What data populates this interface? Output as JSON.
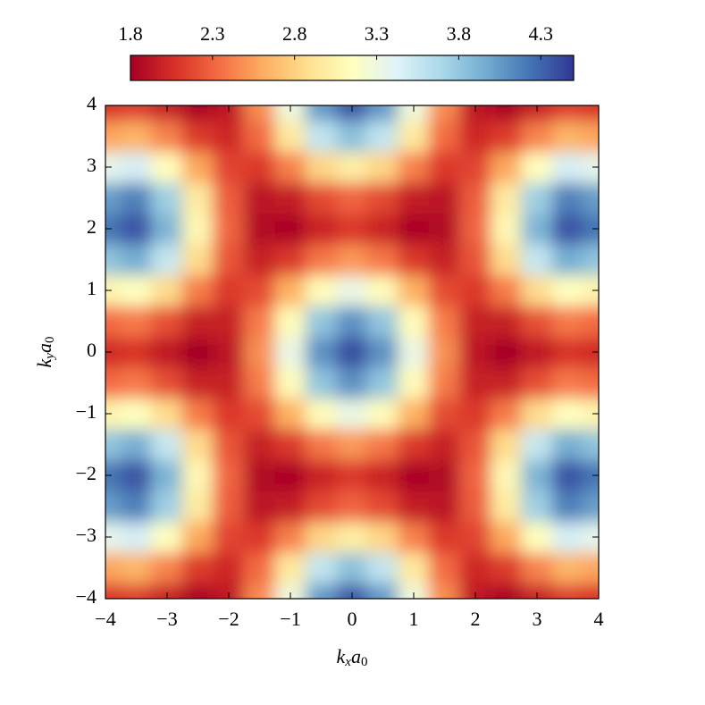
{
  "chart_data": {
    "type": "heatmap",
    "xlabel": [
      "k",
      "x",
      "a",
      "0"
    ],
    "ylabel": [
      "k",
      "y",
      "a",
      "0"
    ],
    "x": [
      -4,
      -3.5,
      -3,
      -2.5,
      -2,
      -1.5,
      -1,
      -0.5,
      0,
      0.5,
      1,
      1.5,
      2,
      2.5,
      3,
      3.5,
      4
    ],
    "y": [
      -4,
      -3.5,
      -3,
      -2.5,
      -2,
      -1.5,
      -1,
      -0.5,
      0,
      0.5,
      1,
      1.5,
      2,
      2.5,
      3,
      3.5,
      4
    ],
    "z": [
      [
        2.08,
        2.13,
        1.98,
        1.83,
        1.94,
        2.47,
        3.29,
        4.05,
        4.35,
        4.05,
        3.29,
        2.47,
        1.94,
        1.83,
        1.98,
        2.13,
        2.08
      ],
      [
        2.57,
        2.64,
        2.43,
        2.12,
        2.02,
        2.33,
        2.96,
        3.58,
        3.84,
        3.58,
        2.96,
        2.33,
        2.02,
        2.12,
        2.43,
        2.64,
        2.57
      ],
      [
        3.36,
        3.47,
        3.14,
        2.59,
        2.16,
        2.11,
        2.42,
        2.82,
        3.0,
        2.82,
        2.42,
        2.11,
        2.16,
        2.59,
        3.14,
        3.47,
        3.36
      ],
      [
        4.03,
        4.17,
        3.75,
        2.98,
        2.27,
        1.92,
        1.96,
        2.18,
        2.3,
        2.18,
        1.96,
        1.92,
        2.27,
        2.98,
        3.75,
        4.17,
        4.03
      ],
      [
        4.22,
        4.37,
        3.91,
        3.09,
        2.3,
        1.87,
        1.83,
        2.0,
        2.1,
        2.0,
        1.83,
        1.87,
        2.3,
        3.09,
        3.91,
        4.37,
        4.22
      ],
      [
        3.82,
        3.95,
        3.56,
        2.86,
        2.23,
        1.98,
        2.1,
        2.38,
        2.52,
        2.38,
        2.1,
        1.98,
        2.23,
        2.86,
        3.56,
        3.95,
        3.82
      ],
      [
        3.05,
        3.15,
        2.86,
        2.4,
        2.11,
        2.19,
        2.63,
        3.12,
        3.33,
        3.12,
        2.63,
        2.19,
        2.11,
        2.4,
        2.86,
        3.15,
        3.05
      ],
      [
        2.33,
        2.39,
        2.21,
        1.98,
        1.98,
        2.4,
        3.12,
        3.81,
        4.09,
        3.81,
        3.12,
        2.4,
        1.98,
        1.98,
        2.21,
        2.39,
        2.33
      ],
      [
        2.03,
        2.08,
        1.94,
        1.8,
        1.93,
        2.48,
        3.32,
        4.09,
        4.4,
        4.09,
        3.32,
        2.48,
        1.93,
        1.8,
        1.94,
        2.08,
        2.03
      ],
      [
        2.33,
        2.39,
        2.21,
        1.98,
        1.98,
        2.4,
        3.12,
        3.81,
        4.09,
        3.81,
        3.12,
        2.4,
        1.98,
        1.98,
        2.21,
        2.39,
        2.33
      ],
      [
        3.05,
        3.15,
        2.86,
        2.4,
        2.11,
        2.19,
        2.63,
        3.12,
        3.33,
        3.12,
        2.63,
        2.19,
        2.11,
        2.4,
        2.86,
        3.15,
        3.05
      ],
      [
        3.82,
        3.95,
        3.56,
        2.86,
        2.23,
        1.98,
        2.1,
        2.38,
        2.52,
        2.38,
        2.1,
        1.98,
        2.23,
        2.86,
        3.56,
        3.95,
        3.82
      ],
      [
        4.22,
        4.37,
        3.91,
        3.09,
        2.3,
        1.87,
        1.83,
        2.0,
        2.1,
        2.0,
        1.83,
        1.87,
        2.3,
        3.09,
        3.91,
        4.37,
        4.22
      ],
      [
        4.03,
        4.17,
        3.75,
        2.98,
        2.27,
        1.92,
        1.96,
        2.18,
        2.3,
        2.18,
        1.96,
        1.92,
        2.27,
        2.98,
        3.75,
        4.17,
        4.03
      ],
      [
        3.36,
        3.47,
        3.14,
        2.59,
        2.16,
        2.11,
        2.42,
        2.82,
        3.0,
        2.82,
        2.42,
        2.11,
        2.16,
        2.59,
        3.14,
        3.47,
        3.36
      ],
      [
        2.57,
        2.64,
        2.43,
        2.12,
        2.02,
        2.33,
        2.96,
        3.58,
        3.84,
        3.58,
        2.96,
        2.33,
        2.02,
        2.12,
        2.43,
        2.64,
        2.57
      ],
      [
        2.08,
        2.13,
        1.98,
        1.83,
        1.94,
        2.47,
        3.29,
        4.05,
        4.35,
        4.05,
        3.29,
        2.47,
        1.94,
        1.83,
        1.98,
        2.13,
        2.08
      ]
    ],
    "xlim": [
      -4,
      4
    ],
    "ylim": [
      -4,
      4
    ],
    "xticks": [
      {
        "value": -4,
        "label": "−4"
      },
      {
        "value": -3,
        "label": "−3"
      },
      {
        "value": -2,
        "label": "−2"
      },
      {
        "value": -1,
        "label": "−1"
      },
      0,
      1,
      2,
      3,
      4
    ],
    "yticks": [
      {
        "value": -4,
        "label": "−4"
      },
      {
        "value": -3,
        "label": "−3"
      },
      {
        "value": -2,
        "label": "−2"
      },
      {
        "value": -1,
        "label": "−1"
      },
      0,
      1,
      2,
      3,
      4
    ],
    "clim": [
      1.8,
      4.5
    ],
    "cticks": [
      1.8,
      2.3,
      2.8,
      3.3,
      3.8,
      4.3
    ],
    "colormap": [
      "#a50026",
      "#d73027",
      "#f46d43",
      "#fdae61",
      "#fee090",
      "#ffffbf",
      "#e0f3f8",
      "#abd9e9",
      "#74add1",
      "#4575b4",
      "#313695"
    ]
  }
}
